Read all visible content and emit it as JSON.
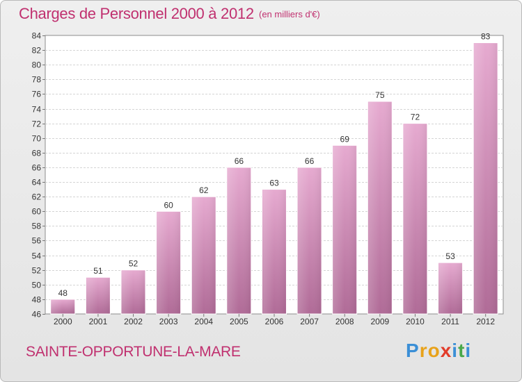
{
  "header": {
    "title": "Charges de Personnel 2000 à 2012",
    "subtitle": "(en milliers d'€)"
  },
  "footer": {
    "town": "SAINTE-OPPORTUNE-LA-MARE",
    "logo": "Proxiti",
    "logo_colors": [
      "#3b8fd6",
      "#e8a21a",
      "#e8a21a",
      "#e23c2a",
      "#3b8fd6",
      "#49a84a",
      "#3b8fd6"
    ]
  },
  "colors": {
    "accent": "#c0306f",
    "bar_top": "#e6aad0",
    "bar_bottom": "#b06b97"
  },
  "chart_data": {
    "type": "bar",
    "title": "Charges de Personnel 2000 à 2012",
    "subtitle": "(en milliers d'€)",
    "xlabel": "",
    "ylabel": "",
    "categories": [
      "2000",
      "2001",
      "2002",
      "2003",
      "2004",
      "2005",
      "2006",
      "2007",
      "2008",
      "2009",
      "2010",
      "2011",
      "2012"
    ],
    "values": [
      48,
      51,
      52,
      60,
      62,
      66,
      63,
      66,
      69,
      75,
      72,
      53,
      83
    ],
    "ylim": [
      46,
      84
    ],
    "yticks": [
      46,
      48,
      50,
      52,
      54,
      56,
      58,
      60,
      62,
      64,
      66,
      68,
      70,
      72,
      74,
      76,
      78,
      80,
      82,
      84
    ],
    "grid": true,
    "legend": "none",
    "data_labels": true
  }
}
